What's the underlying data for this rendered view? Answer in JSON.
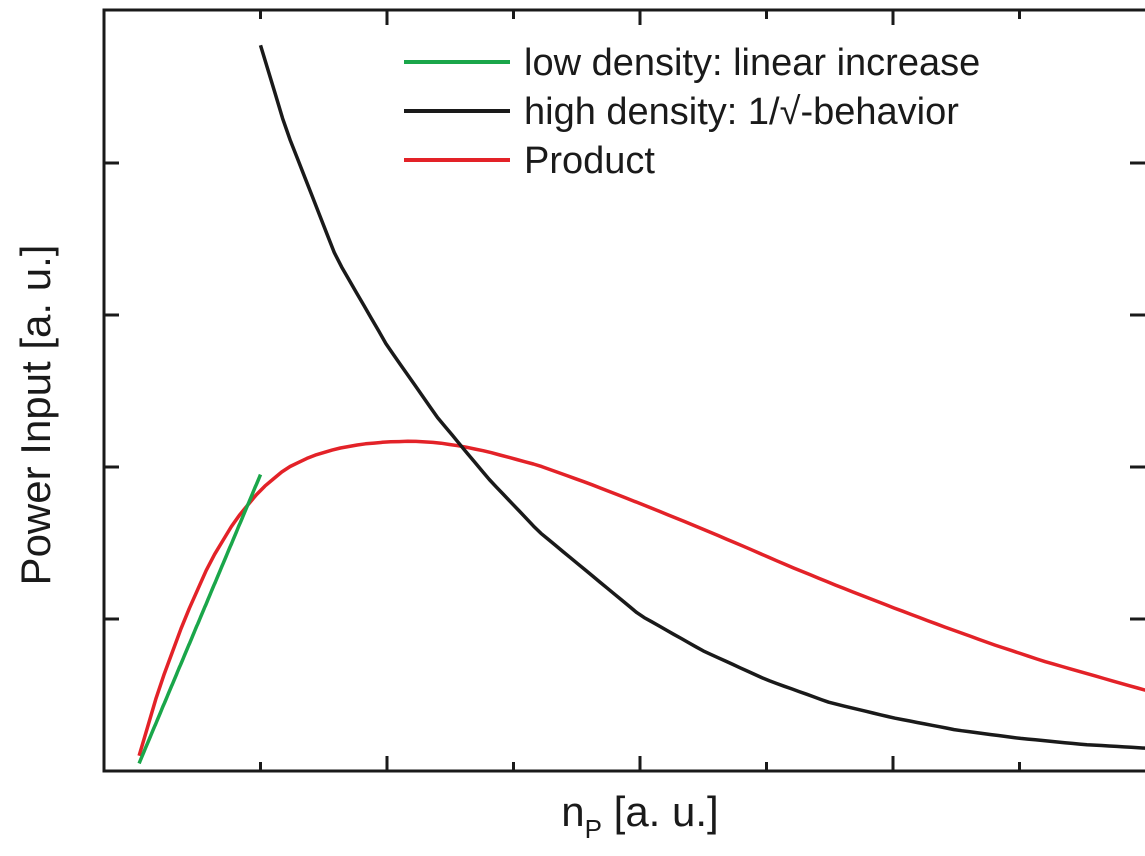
{
  "chart_data": {
    "type": "line",
    "xlabel": "n",
    "xlabel_subscript": "P",
    "xlabel_unit": " [a. u.]",
    "ylabel": "Power Input [a. u.]",
    "xlim": [
      0,
      4
    ],
    "ylim": [
      0,
      1
    ],
    "x_ticks_major": [
      1,
      2,
      3
    ],
    "x_ticks_minor": [
      0.5,
      1.5,
      2.5,
      3.5
    ],
    "y_ticks": [
      0.2,
      0.4,
      0.6,
      0.8
    ],
    "tick_labels_shown": false,
    "grid": false,
    "legend_position": "top-right",
    "series": [
      {
        "name": "low density: linear increase",
        "color": "#1aa64a",
        "x": [
          0.02,
          0.5
        ],
        "y": [
          0.01,
          0.39
        ]
      },
      {
        "name": "high density: 1/√-behavior",
        "color": "#1a1a1a",
        "x": [
          0.5,
          0.6,
          0.8,
          1.0,
          1.2,
          1.4,
          1.6,
          1.8,
          2.0,
          2.25,
          2.5,
          2.75,
          3.0,
          3.25,
          3.5,
          3.75,
          4.0
        ],
        "y": [
          0.955,
          0.845,
          0.675,
          0.56,
          0.465,
          0.385,
          0.315,
          0.26,
          0.205,
          0.158,
          0.12,
          0.09,
          0.07,
          0.054,
          0.043,
          0.035,
          0.03
        ]
      },
      {
        "name": "Product",
        "color": "#e32228",
        "x": [
          0.02,
          0.1,
          0.2,
          0.3,
          0.4,
          0.5,
          0.6,
          0.7,
          0.8,
          0.9,
          1.0,
          1.1,
          1.2,
          1.3,
          1.4,
          1.5,
          1.6,
          1.8,
          2.0,
          2.2,
          2.4,
          2.6,
          2.8,
          3.0,
          3.2,
          3.4,
          3.6,
          3.8,
          4.0
        ],
        "y": [
          0.02,
          0.11,
          0.2,
          0.275,
          0.33,
          0.37,
          0.398,
          0.414,
          0.424,
          0.43,
          0.433,
          0.434,
          0.432,
          0.427,
          0.42,
          0.411,
          0.402,
          0.378,
          0.352,
          0.325,
          0.297,
          0.268,
          0.241,
          0.215,
          0.19,
          0.166,
          0.144,
          0.125,
          0.106
        ]
      }
    ]
  }
}
